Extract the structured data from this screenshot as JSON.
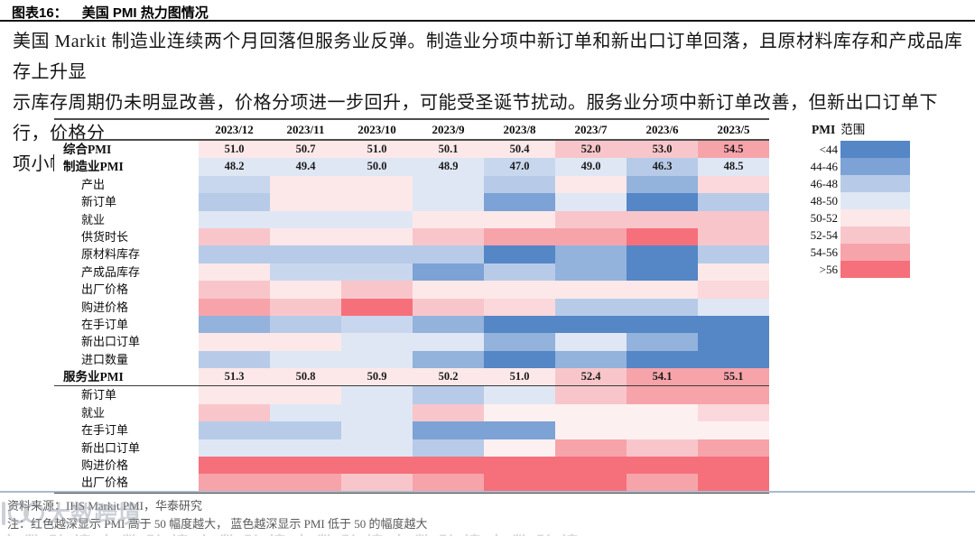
{
  "figure": {
    "title_label": "图表16：",
    "title_text": "美国 PMI 热力图情况",
    "summary_lines": [
      "美国 Markit 制造业连续两个月回落但服务业反弹。制造业分项中新订单和新出口订单回落，且原材料库存和产成品库存上升显",
      "示库存周期仍未明显改善，价格分项进一步回升，可能受圣诞节扰动。服务业分项中新订单改善，但新出口订单下行，价格分",
      "项小幅回升，但总体仍处于回落趋势"
    ]
  },
  "chart_data": {
    "type": "heatmap",
    "columns": [
      "2023/12",
      "2023/11",
      "2023/10",
      "2023/9",
      "2023/8",
      "2023/7",
      "2023/6",
      "2023/5"
    ],
    "palette": {
      "b0": "#5586c6",
      "b1": "#7da2d5",
      "b15": "#93b2dc",
      "b2": "#b7cbe8",
      "b25": "#c9d7ee",
      "b3": "#dfe7f4",
      "p0": "#fdf0f1",
      "p1": "#fce8e9",
      "p15": "#fbd8db",
      "p2": "#f8c6ca",
      "p3": "#f7a3aa",
      "p4": "#f5707b"
    },
    "legend": {
      "title_bold": "PMI",
      "title_rest": "范围",
      "entries": [
        {
          "label": "<44",
          "token": "b0"
        },
        {
          "label": "44-46",
          "token": "b1"
        },
        {
          "label": "46-48",
          "token": "b2"
        },
        {
          "label": "48-50",
          "token": "b3"
        },
        {
          "label": "50-52",
          "token": "p1"
        },
        {
          "label": "52-54",
          "token": "p2"
        },
        {
          "label": "54-56",
          "token": "p3"
        },
        {
          "label": ">56",
          "token": "p4"
        }
      ]
    },
    "rows": [
      {
        "label": "综合PMI",
        "style": "main",
        "values": [
          "51.0",
          "50.7",
          "51.0",
          "50.1",
          "50.4",
          "52.0",
          "53.0",
          "54.5"
        ],
        "colors": [
          "p1",
          "p1",
          "p1",
          "p1",
          "p1",
          "p2",
          "p2",
          "p3"
        ]
      },
      {
        "label": "制造业PMI",
        "style": "main",
        "values": [
          "48.2",
          "49.4",
          "50.0",
          "48.9",
          "47.0",
          "49.0",
          "46.3",
          "48.5"
        ],
        "colors": [
          "b3",
          "b3",
          "b3",
          "b3",
          "b25",
          "b3",
          "b2",
          "b3"
        ]
      },
      {
        "label": "产出",
        "style": "sub",
        "values": null,
        "colors": [
          "b25",
          "p1",
          "p1",
          "b3",
          "b2",
          "p1",
          "b15",
          "p15"
        ]
      },
      {
        "label": "新订单",
        "style": "sub",
        "values": null,
        "colors": [
          "b2",
          "p1",
          "p1",
          "b3",
          "b1",
          "b3",
          "b0",
          "b2"
        ]
      },
      {
        "label": "就业",
        "style": "sub",
        "values": null,
        "colors": [
          "b3",
          "b3",
          "b3",
          "p1",
          "p1",
          "p2",
          "p2",
          "p2"
        ]
      },
      {
        "label": "供货时长",
        "style": "sub",
        "values": null,
        "colors": [
          "p2",
          "p1",
          "p1",
          "p2",
          "p3",
          "p3",
          "p4",
          "p2"
        ]
      },
      {
        "label": "原材料库存",
        "style": "sub",
        "values": null,
        "colors": [
          "b2",
          "b2",
          "b2",
          "b2",
          "b0",
          "b15",
          "b0",
          "b2"
        ]
      },
      {
        "label": "产成品库存",
        "style": "sub",
        "values": null,
        "colors": [
          "p1",
          "b25",
          "b25",
          "b1",
          "b2",
          "b15",
          "b0",
          "p1"
        ]
      },
      {
        "label": "出厂价格",
        "style": "sub",
        "values": null,
        "colors": [
          "p2",
          "p1",
          "p2",
          "p1",
          "p1",
          "p1",
          "p1",
          "p15"
        ]
      },
      {
        "label": "购进价格",
        "style": "sub",
        "values": null,
        "colors": [
          "p3",
          "p2",
          "p4",
          "p2",
          "p15",
          "b2",
          "b2",
          "b3"
        ]
      },
      {
        "label": "在手订单",
        "style": "sub",
        "values": null,
        "colors": [
          "b15",
          "b2",
          "b25",
          "b15",
          "b0",
          "b0",
          "b0",
          "b0"
        ]
      },
      {
        "label": "新出口订单",
        "style": "sub",
        "values": null,
        "colors": [
          "p1",
          "p1",
          "b3",
          "b3",
          "b15",
          "b3",
          "b15",
          "b0"
        ]
      },
      {
        "label": "进口数量",
        "style": "sub",
        "values": null,
        "colors": [
          "b2",
          "b3",
          "b3",
          "b15",
          "b0",
          "b15",
          "b0",
          "b0"
        ]
      },
      {
        "label": "服务业PMI",
        "style": "main",
        "rule_below": true,
        "values": [
          "51.3",
          "50.8",
          "50.9",
          "50.2",
          "51.0",
          "52.4",
          "54.1",
          "55.1"
        ],
        "colors": [
          "p1",
          "p1",
          "p1",
          "p1",
          "p1",
          "p2",
          "p3",
          "p3"
        ]
      },
      {
        "label": "新订单",
        "style": "sub",
        "values": null,
        "colors": [
          "p1",
          "p1",
          "b3",
          "b2",
          "b3",
          "p2",
          "p3",
          "p3"
        ]
      },
      {
        "label": "就业",
        "style": "sub",
        "values": null,
        "colors": [
          "p2",
          "b3",
          "b3",
          "p2",
          "p0",
          "p0",
          "p0",
          "p15"
        ]
      },
      {
        "label": "在手订单",
        "style": "sub",
        "values": null,
        "colors": [
          "b2",
          "b2",
          "b3",
          "b1",
          "b1",
          "p0",
          "p0",
          "p0"
        ]
      },
      {
        "label": "新出口订单",
        "style": "sub",
        "values": null,
        "colors": [
          "b3",
          "b3",
          "b3",
          "b2",
          "p0",
          "p3",
          "p2",
          "p3"
        ]
      },
      {
        "label": "购进价格",
        "style": "sub",
        "values": null,
        "colors": [
          "p4",
          "p4",
          "p4",
          "p4",
          "p4",
          "p4",
          "p4",
          "p4"
        ]
      },
      {
        "label": "出厂价格",
        "style": "sub",
        "values": null,
        "colors": [
          "p3",
          "p3",
          "p2",
          "p3",
          "p4",
          "p4",
          "p3",
          "p4"
        ]
      }
    ]
  },
  "footer": {
    "source": "资料来源：IHS Markit PMI，华泰研究",
    "note": "注：红色越深显示 PMI 高于 50 幅度越大， 蓝色越深显示 PMI 低于 50 的幅度越大"
  },
  "watermark": {
    "text": "大数跨境",
    "strip_text": "大数跨境大数跨境大数跨境大数跨境大数跨境大数跨境"
  }
}
